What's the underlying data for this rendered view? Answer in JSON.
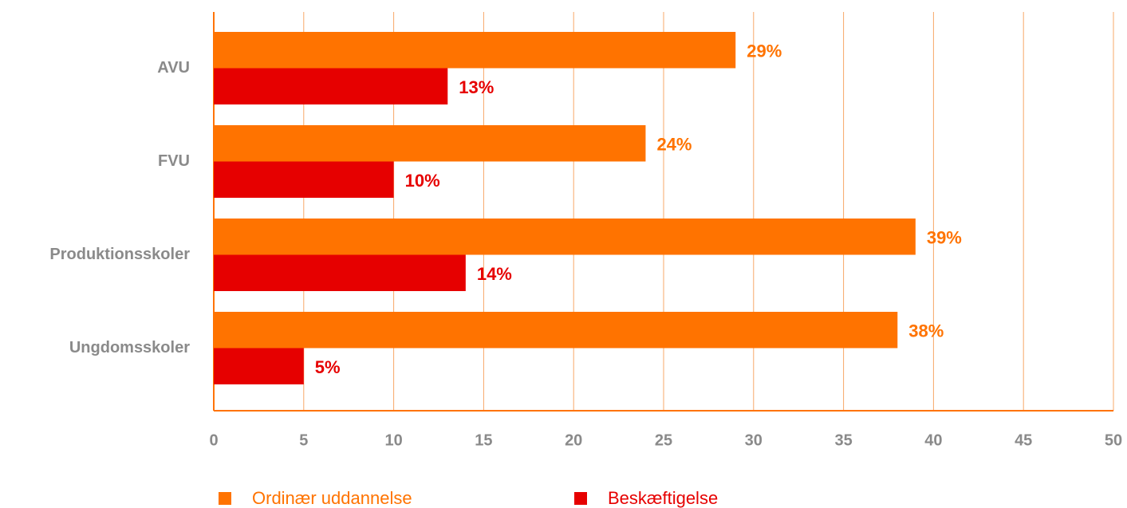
{
  "chart_data": {
    "type": "barh",
    "categories": [
      "AVU",
      "FVU",
      "Produktionsskoler",
      "Ungdomsskoler"
    ],
    "series": [
      {
        "name": "Ordinær uddannelse",
        "color": "#ff7300",
        "values": [
          29,
          24,
          39,
          38
        ],
        "value_labels": [
          "29%",
          "24%",
          "39%",
          "38%"
        ]
      },
      {
        "name": "Beskæftigelse",
        "color": "#e60000",
        "values": [
          13,
          10,
          14,
          5
        ],
        "value_labels": [
          "13%",
          "10%",
          "14%",
          "5%"
        ]
      }
    ],
    "xlim": [
      0,
      50
    ],
    "xticks": [
      0,
      5,
      10,
      15,
      20,
      25,
      30,
      35,
      40,
      45,
      50
    ],
    "grid": true,
    "legend": "bottom"
  }
}
